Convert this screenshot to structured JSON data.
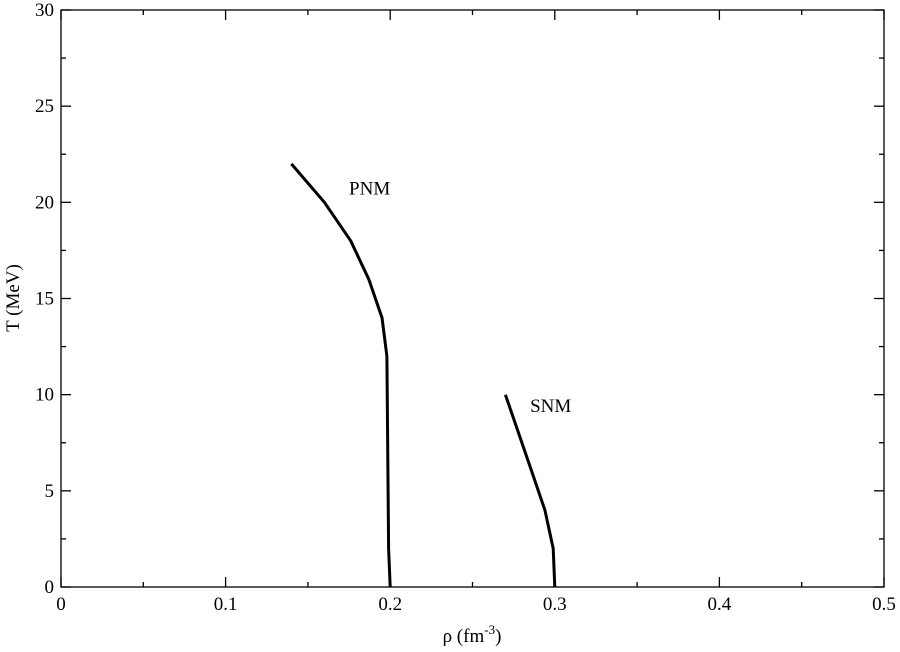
{
  "chart_data": {
    "type": "line",
    "title": "",
    "xlabel": "ρ (fm",
    "xlabel_sup": "-3",
    "xlabel_end": ")",
    "ylabel": "T (MeV)",
    "xlim": [
      0,
      0.5
    ],
    "ylim": [
      0,
      30
    ],
    "x_major_ticks": [
      0,
      0.1,
      0.2,
      0.3,
      0.4,
      0.5
    ],
    "x_tick_labels": [
      "0",
      "0.1",
      "0.2",
      "0.3",
      "0.4",
      "0.5"
    ],
    "x_minor_ticks": [
      0.05,
      0.15,
      0.25,
      0.35,
      0.45
    ],
    "y_major_ticks": [
      0,
      5,
      10,
      15,
      20,
      25,
      30
    ],
    "y_tick_labels": [
      "0",
      "5",
      "10",
      "15",
      "20",
      "25",
      "30"
    ],
    "y_minor_ticks": [
      2.5,
      7.5,
      12.5,
      17.5,
      22.5,
      27.5
    ],
    "grid": false,
    "line_color": "#000000",
    "series": [
      {
        "x": [
          0.14,
          0.16,
          0.176,
          0.187,
          0.195,
          0.198,
          0.199,
          0.2
        ],
        "y": [
          22,
          20,
          18,
          16,
          14,
          12,
          2,
          0
        ]
      },
      {
        "x": [
          0.27,
          0.278,
          0.286,
          0.294,
          0.299,
          0.3
        ],
        "y": [
          10,
          8,
          6,
          4,
          2,
          0
        ]
      }
    ],
    "annotations": [
      {
        "text": "PNM",
        "x": 0.175,
        "y": 20.4
      },
      {
        "text": "SNM",
        "x": 0.285,
        "y": 9.1
      }
    ]
  }
}
